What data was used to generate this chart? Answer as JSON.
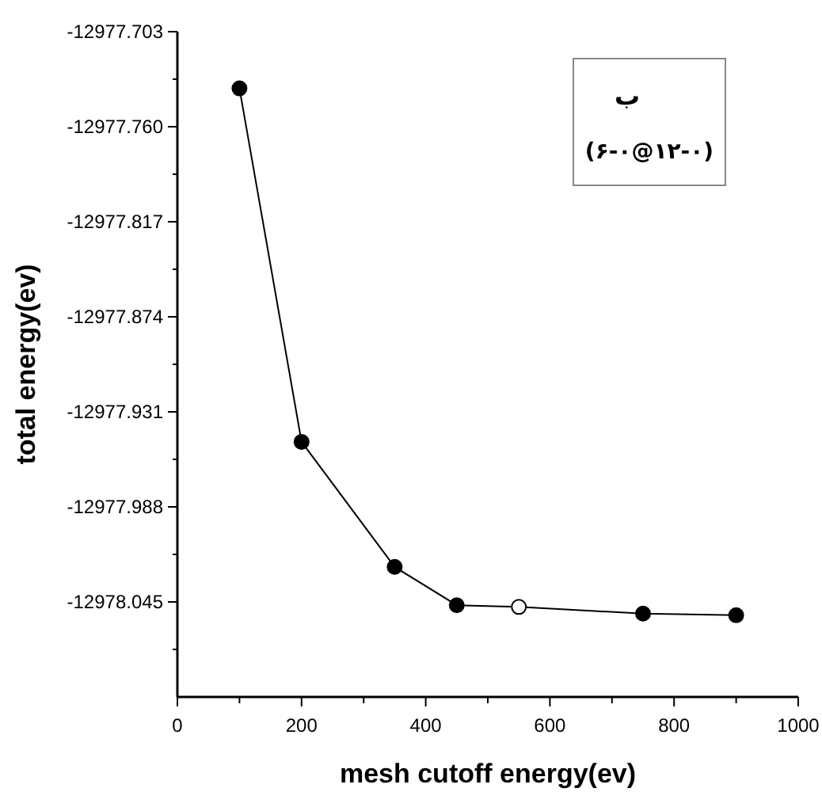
{
  "chart_data": {
    "type": "line",
    "xlabel": "mesh cutoff energy(ev)",
    "ylabel": "total energy(ev)",
    "x": [
      100,
      200,
      350,
      450,
      550,
      750,
      900
    ],
    "series": [
      {
        "color": "#000000",
        "colors": [
          "#000000",
          "#000000",
          "#000000",
          "#000000",
          "#ffffff",
          "#000000",
          "#000000"
        ],
        "values": [
          -12977.737,
          -12977.949,
          -12978.024,
          -12978.047,
          -12978.048,
          -12978.052,
          -12978.053
        ]
      }
    ],
    "xlim": [
      0,
      1000
    ],
    "xticks": [
      0,
      {
        "value": 100,
        "label": null
      },
      200,
      {
        "value": 300,
        "label": null
      },
      400,
      {
        "value": 500,
        "label": null
      },
      600,
      {
        "value": 700,
        "label": null
      },
      800,
      {
        "value": 900,
        "label": null
      },
      1000
    ],
    "ylim": [
      -12978.102,
      -12977.703
    ],
    "yticks": [
      -12977.703,
      {
        "value": -12977.7315,
        "label": null
      },
      {
        "value": -12977.76,
        "label": "-12977.760"
      },
      {
        "value": -12977.7885,
        "label": null
      },
      -12977.817,
      {
        "value": -12977.8455,
        "label": null
      },
      -12977.874,
      {
        "value": -12977.9025,
        "label": null
      },
      -12977.931,
      {
        "value": -12977.9595,
        "label": null
      },
      -12977.988,
      {
        "value": -12978.0165,
        "label": null
      },
      -12978.045,
      {
        "value": -12978.0735,
        "label": null
      }
    ],
    "marker": "circle",
    "line_style": "solid",
    "grid": false,
    "annotations": [
      "ب",
      "(۶-۰@۱۲-۰)"
    ]
  }
}
